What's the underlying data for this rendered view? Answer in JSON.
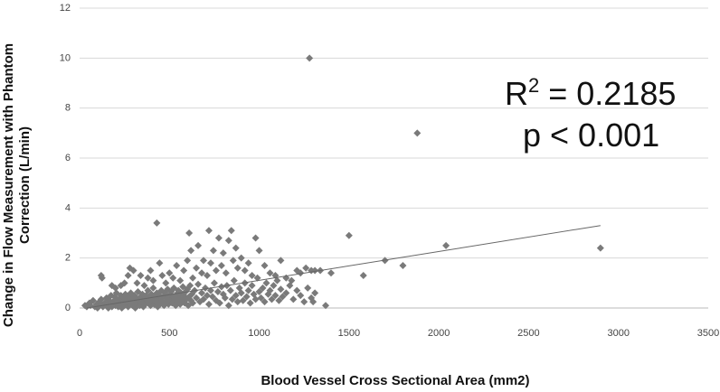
{
  "chart_data": {
    "type": "scatter",
    "title": "",
    "xlabel": "Blood Vessel Cross Sectional Area (mm2)",
    "ylabel_line1": "Change in Flow Measurement with Phantom",
    "ylabel_line2": "Correction (L/min)",
    "xlim": [
      0,
      3500
    ],
    "ylim": [
      0,
      12
    ],
    "x_ticks": [
      0,
      500,
      1000,
      1500,
      2000,
      2500,
      3000,
      3500
    ],
    "y_ticks": [
      0,
      2,
      4,
      6,
      8,
      10,
      12
    ],
    "x_tick_labels": [
      "0",
      "500",
      "1000",
      "1500",
      "2000",
      "2500",
      "3000",
      "3500"
    ],
    "y_tick_labels": [
      "0",
      "2",
      "4",
      "6",
      "8",
      "10",
      "12"
    ],
    "grid": "horizontal",
    "marker": "diamond",
    "marker_color": "#7a7a7a",
    "line_color": "#666666",
    "annotation": {
      "r2_base": "R",
      "r2_sup": "2",
      "r2_rest": " = 0.2185",
      "p_text": "p < 0.001"
    },
    "trendline": {
      "x": [
        40,
        2900
      ],
      "y": [
        0.0,
        3.3
      ]
    },
    "points": [
      [
        30,
        0.1
      ],
      [
        40,
        0.05
      ],
      [
        55,
        0.2
      ],
      [
        60,
        0.1
      ],
      [
        75,
        0.3
      ],
      [
        85,
        0.05
      ],
      [
        95,
        0.15
      ],
      [
        100,
        0.0
      ],
      [
        110,
        0.25
      ],
      [
        120,
        0.35
      ],
      [
        125,
        0.1
      ],
      [
        130,
        0.05
      ],
      [
        140,
        0.2
      ],
      [
        150,
        0.4
      ],
      [
        155,
        0.15
      ],
      [
        160,
        0.0
      ],
      [
        165,
        0.3
      ],
      [
        170,
        0.1
      ],
      [
        175,
        0.5
      ],
      [
        180,
        0.05
      ],
      [
        185,
        0.25
      ],
      [
        190,
        0.2
      ],
      [
        195,
        0.45
      ],
      [
        200,
        0.1
      ],
      [
        205,
        0.6
      ],
      [
        210,
        0.3
      ],
      [
        215,
        0.05
      ],
      [
        220,
        0.35
      ],
      [
        225,
        0.15
      ],
      [
        230,
        0.5
      ],
      [
        235,
        0.0
      ],
      [
        240,
        0.25
      ],
      [
        245,
        0.4
      ],
      [
        250,
        0.1
      ],
      [
        255,
        0.55
      ],
      [
        260,
        0.2
      ],
      [
        265,
        0.3
      ],
      [
        270,
        0.05
      ],
      [
        275,
        0.45
      ],
      [
        280,
        0.15
      ],
      [
        285,
        0.6
      ],
      [
        290,
        0.35
      ],
      [
        295,
        0.1
      ],
      [
        300,
        0.25
      ],
      [
        305,
        0.5
      ],
      [
        310,
        0.0
      ],
      [
        315,
        0.4
      ],
      [
        320,
        0.2
      ],
      [
        325,
        0.65
      ],
      [
        330,
        0.3
      ],
      [
        335,
        0.1
      ],
      [
        340,
        0.45
      ],
      [
        345,
        0.25
      ],
      [
        350,
        0.55
      ],
      [
        355,
        0.05
      ],
      [
        360,
        0.35
      ],
      [
        365,
        0.15
      ],
      [
        370,
        0.5
      ],
      [
        375,
        0.3
      ],
      [
        380,
        0.7
      ],
      [
        385,
        0.2
      ],
      [
        390,
        0.4
      ],
      [
        395,
        0.1
      ],
      [
        400,
        0.55
      ],
      [
        405,
        0.3
      ],
      [
        410,
        0.8
      ],
      [
        415,
        0.15
      ],
      [
        420,
        0.45
      ],
      [
        425,
        0.25
      ],
      [
        430,
        0.6
      ],
      [
        435,
        0.05
      ],
      [
        440,
        0.35
      ],
      [
        445,
        0.5
      ],
      [
        450,
        0.2
      ],
      [
        455,
        0.7
      ],
      [
        460,
        0.3
      ],
      [
        465,
        0.45
      ],
      [
        470,
        0.1
      ],
      [
        475,
        0.6
      ],
      [
        480,
        0.25
      ],
      [
        485,
        0.4
      ],
      [
        490,
        0.75
      ],
      [
        495,
        0.15
      ],
      [
        500,
        0.5
      ],
      [
        505,
        0.3
      ],
      [
        510,
        0.65
      ],
      [
        515,
        0.2
      ],
      [
        520,
        0.45
      ],
      [
        525,
        0.8
      ],
      [
        530,
        0.35
      ],
      [
        535,
        0.1
      ],
      [
        540,
        0.55
      ],
      [
        545,
        0.25
      ],
      [
        550,
        0.7
      ],
      [
        555,
        0.4
      ],
      [
        560,
        0.15
      ],
      [
        565,
        0.6
      ],
      [
        570,
        0.3
      ],
      [
        575,
        0.85
      ],
      [
        580,
        0.5
      ],
      [
        585,
        0.2
      ],
      [
        590,
        0.65
      ],
      [
        595,
        0.35
      ],
      [
        600,
        0.75
      ],
      [
        605,
        0.1
      ],
      [
        610,
        0.45
      ],
      [
        615,
        0.9
      ],
      [
        620,
        0.3
      ],
      [
        625,
        0.55
      ],
      [
        630,
        0.2
      ],
      [
        640,
        0.7
      ],
      [
        650,
        0.4
      ],
      [
        660,
        0.95
      ],
      [
        670,
        0.25
      ],
      [
        680,
        0.6
      ],
      [
        690,
        0.35
      ],
      [
        700,
        0.8
      ],
      [
        710,
        0.5
      ],
      [
        720,
        0.15
      ],
      [
        730,
        0.7
      ],
      [
        740,
        0.45
      ],
      [
        750,
        1.0
      ],
      [
        760,
        0.3
      ],
      [
        770,
        0.65
      ],
      [
        780,
        0.2
      ],
      [
        790,
        0.85
      ],
      [
        800,
        0.55
      ],
      [
        810,
        0.4
      ],
      [
        820,
        0.9
      ],
      [
        830,
        0.1
      ],
      [
        840,
        0.7
      ],
      [
        850,
        0.35
      ],
      [
        860,
        1.1
      ],
      [
        870,
        0.5
      ],
      [
        880,
        0.25
      ],
      [
        890,
        0.8
      ],
      [
        900,
        0.6
      ],
      [
        910,
        0.3
      ],
      [
        920,
        1.0
      ],
      [
        930,
        0.45
      ],
      [
        940,
        0.7
      ],
      [
        950,
        0.2
      ],
      [
        960,
        0.9
      ],
      [
        970,
        0.55
      ],
      [
        980,
        0.35
      ],
      [
        990,
        1.2
      ],
      [
        1000,
        0.65
      ],
      [
        1010,
        0.4
      ],
      [
        1020,
        0.8
      ],
      [
        1030,
        0.25
      ],
      [
        1040,
        1.0
      ],
      [
        1050,
        0.55
      ],
      [
        1060,
        0.7
      ],
      [
        1070,
        0.35
      ],
      [
        1080,
        0.9
      ],
      [
        1090,
        0.5
      ],
      [
        1100,
        1.1
      ],
      [
        1110,
        0.3
      ],
      [
        1120,
        0.75
      ],
      [
        1130,
        0.45
      ],
      [
        1150,
        0.6
      ],
      [
        1170,
        0.9
      ],
      [
        1190,
        0.35
      ],
      [
        1210,
        0.7
      ],
      [
        1230,
        0.5
      ],
      [
        1250,
        0.25
      ],
      [
        1270,
        0.8
      ],
      [
        1290,
        0.4
      ],
      [
        1310,
        0.6
      ],
      [
        120,
        1.3
      ],
      [
        125,
        1.2
      ],
      [
        180,
        0.9
      ],
      [
        200,
        0.8
      ],
      [
        230,
        0.9
      ],
      [
        250,
        1.0
      ],
      [
        270,
        1.3
      ],
      [
        280,
        1.6
      ],
      [
        300,
        1.5
      ],
      [
        320,
        1.0
      ],
      [
        340,
        1.3
      ],
      [
        360,
        0.9
      ],
      [
        380,
        1.2
      ],
      [
        395,
        1.5
      ],
      [
        410,
        1.1
      ],
      [
        430,
        3.4
      ],
      [
        445,
        1.8
      ],
      [
        460,
        1.3
      ],
      [
        480,
        1.0
      ],
      [
        500,
        1.4
      ],
      [
        520,
        1.2
      ],
      [
        540,
        1.7
      ],
      [
        560,
        1.1
      ],
      [
        580,
        1.5
      ],
      [
        600,
        1.9
      ],
      [
        610,
        3.0
      ],
      [
        620,
        2.3
      ],
      [
        630,
        1.2
      ],
      [
        650,
        1.6
      ],
      [
        660,
        2.5
      ],
      [
        680,
        1.4
      ],
      [
        690,
        1.9
      ],
      [
        710,
        1.3
      ],
      [
        720,
        3.1
      ],
      [
        730,
        1.8
      ],
      [
        745,
        2.3
      ],
      [
        760,
        1.5
      ],
      [
        775,
        2.8
      ],
      [
        790,
        1.7
      ],
      [
        800,
        2.2
      ],
      [
        815,
        1.4
      ],
      [
        830,
        2.7
      ],
      [
        845,
        3.1
      ],
      [
        855,
        1.9
      ],
      [
        870,
        2.4
      ],
      [
        880,
        1.6
      ],
      [
        900,
        2.0
      ],
      [
        920,
        1.5
      ],
      [
        940,
        1.8
      ],
      [
        960,
        1.3
      ],
      [
        980,
        2.8
      ],
      [
        1000,
        2.3
      ],
      [
        1030,
        1.7
      ],
      [
        1060,
        1.4
      ],
      [
        1090,
        1.3
      ],
      [
        1120,
        1.9
      ],
      [
        1150,
        1.2
      ],
      [
        1180,
        1.1
      ],
      [
        1210,
        1.5
      ],
      [
        1230,
        1.4
      ],
      [
        1260,
        1.6
      ],
      [
        1290,
        1.5
      ],
      [
        1310,
        1.5
      ],
      [
        1340,
        1.5
      ],
      [
        1370,
        0.1
      ],
      [
        1300,
        0.25
      ],
      [
        1400,
        1.4
      ],
      [
        1500,
        2.9
      ],
      [
        1580,
        1.3
      ],
      [
        1700,
        1.9
      ],
      [
        1800,
        1.7
      ],
      [
        2040,
        2.5
      ],
      [
        2900,
        2.4
      ],
      [
        1280,
        10.0
      ],
      [
        1880,
        7.0
      ]
    ]
  }
}
